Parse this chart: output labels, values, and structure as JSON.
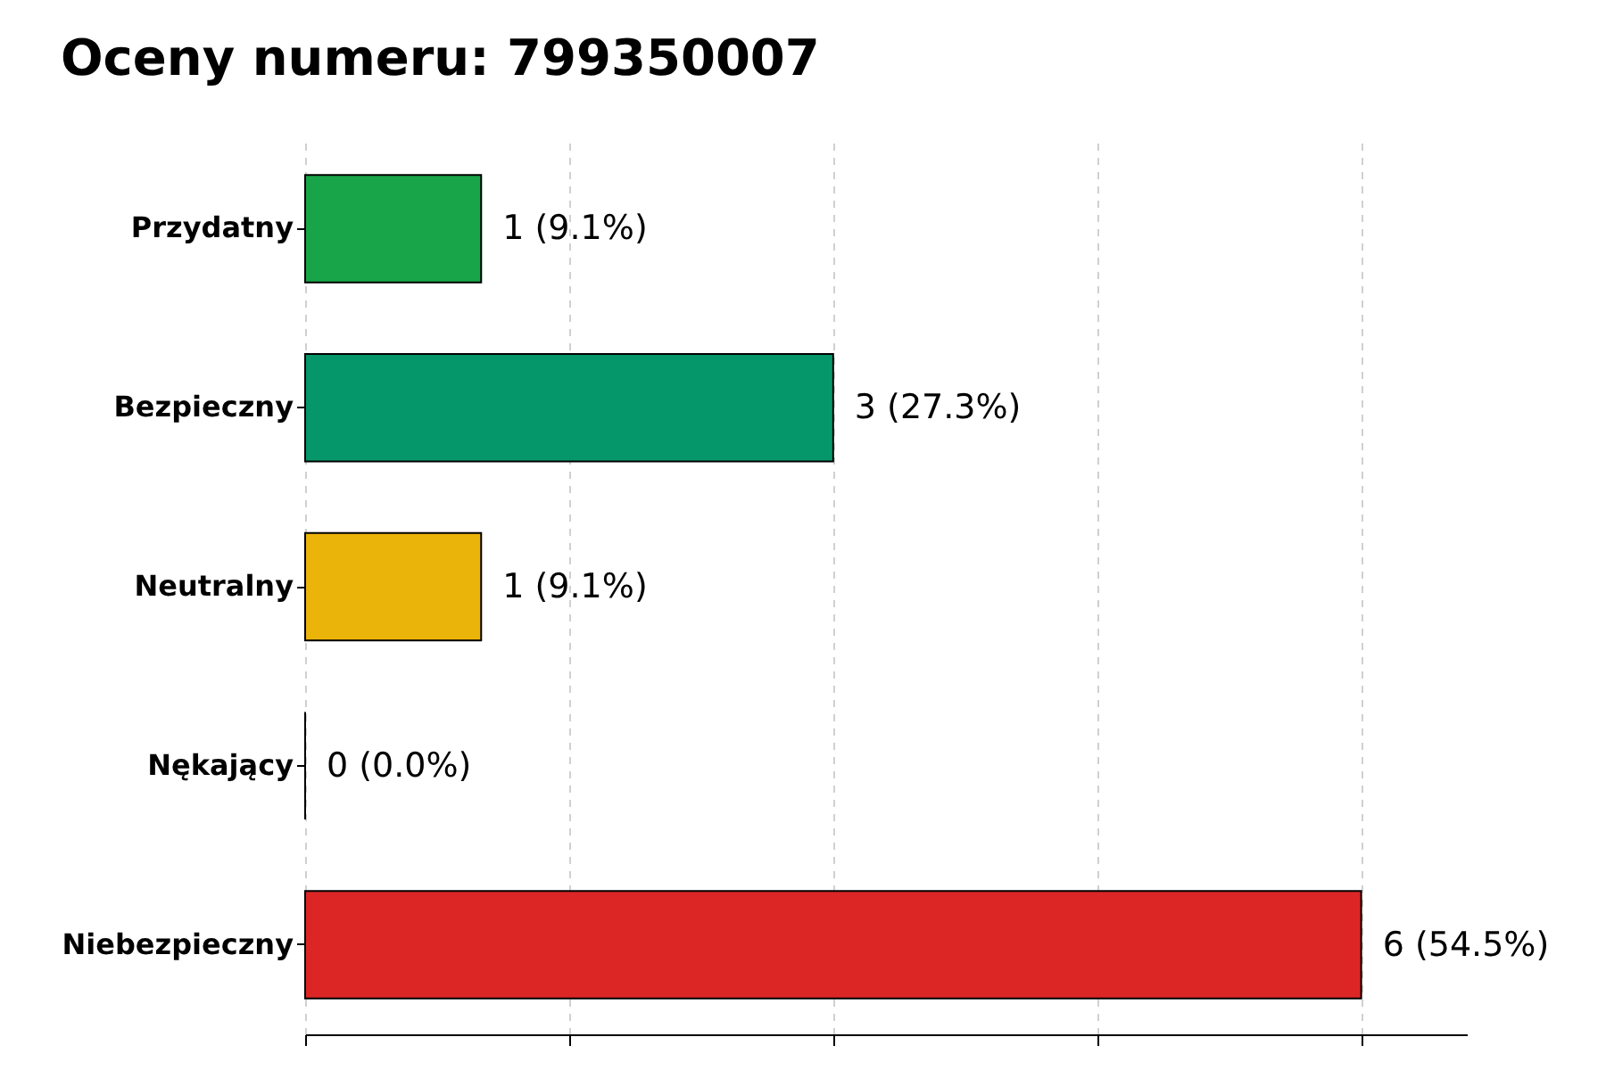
{
  "chart_data": {
    "type": "bar",
    "orientation": "horizontal",
    "title": "Oceny numeru: 799350007",
    "categories": [
      "Przydatny",
      "Bezpieczny",
      "Neutralny",
      "Nękający",
      "Niebezpieczny"
    ],
    "values": [
      1,
      3,
      1,
      0,
      6
    ],
    "colors": [
      "#18a549",
      "#05976a",
      "#ebb40a",
      "#000000",
      "#dc2626"
    ],
    "value_labels": [
      "1 (9.1%)",
      "3 (27.3%)",
      "1 (9.1%)",
      "0 (0.0%)",
      "6 (54.5%)"
    ],
    "xlim": [
      0,
      6.6
    ],
    "xticks": [
      {
        "value": 0,
        "label": null
      },
      {
        "value": 1.5,
        "label": null
      },
      {
        "value": 3,
        "label": null
      },
      {
        "value": 4.5,
        "label": null
      },
      {
        "value": 6,
        "label": null
      }
    ],
    "tick_labels": "y",
    "grid": "x"
  }
}
